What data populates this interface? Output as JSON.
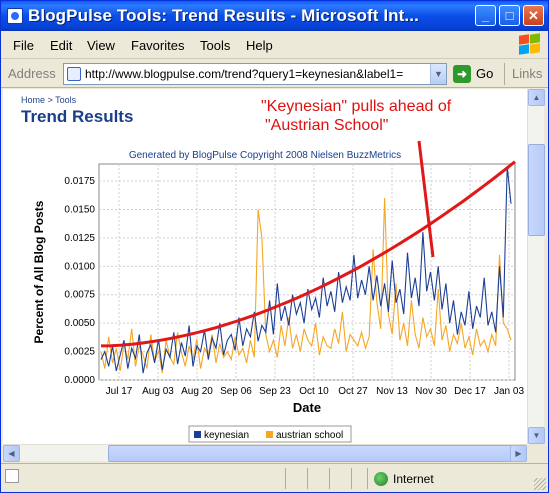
{
  "window": {
    "title": "BlogPulse Tools: Trend Results - Microsoft Int...",
    "controls": {
      "minimize": "_",
      "maximize": "□",
      "close": "✕"
    }
  },
  "menu": [
    "File",
    "Edit",
    "View",
    "Favorites",
    "Tools",
    "Help"
  ],
  "address": {
    "label": "Address",
    "url": "http://www.blogpulse.com/trend?query1=keynesian&label1=",
    "go": "Go",
    "links": "Links"
  },
  "page": {
    "breadcrumb_home": "Home",
    "breadcrumb_sep": ">",
    "breadcrumb_tools": "Tools",
    "title": "Trend Results",
    "annotation_line1": "\"Keynesian\" pulls ahead of",
    "annotation_line2": "\"Austrian School\"",
    "generated": "Generated by BlogPulse Copyright 2008 Nielsen BuzzMetrics"
  },
  "status": {
    "zone": "Internet"
  },
  "colors": {
    "keynesian": "#1c3f95",
    "austrian": "#f5a623",
    "trend": "#e01818"
  },
  "chart_data": {
    "type": "line",
    "xlabel": "Date",
    "ylabel": "Percent of All Blog Posts",
    "ylim": [
      0,
      0.019
    ],
    "yticks": [
      "0.0000",
      "0.0025",
      "0.0050",
      "0.0075",
      "0.0100",
      "0.0125",
      "0.0150",
      "0.0175"
    ],
    "xticks": [
      "Jul 17",
      "Aug 03",
      "Aug 20",
      "Sep 06",
      "Sep 23",
      "Oct 10",
      "Oct 27",
      "Nov 13",
      "Nov 30",
      "Dec 17",
      "Jan 03"
    ],
    "series": [
      {
        "name": "keynesian",
        "values": [
          0.0018,
          0.0025,
          0.0012,
          0.003,
          0.0008,
          0.0022,
          0.0035,
          0.001,
          0.0028,
          0.0019,
          0.004,
          0.0006,
          0.0024,
          0.0031,
          0.0015,
          0.0036,
          0.0009,
          0.0027,
          0.002,
          0.0042,
          0.0014,
          0.0033,
          0.0021,
          0.0048,
          0.0012,
          0.003,
          0.0025,
          0.0044,
          0.0018,
          0.0037,
          0.0028,
          0.005,
          0.0022,
          0.0035,
          0.004,
          0.0026,
          0.0055,
          0.003,
          0.0045,
          0.0038,
          0.006,
          0.0034,
          0.0048,
          0.0042,
          0.007,
          0.004,
          0.0085,
          0.0052,
          0.0065,
          0.0048,
          0.0075,
          0.0058,
          0.0068,
          0.005,
          0.008,
          0.0062,
          0.0072,
          0.0055,
          0.009,
          0.0065,
          0.0078,
          0.006,
          0.0095,
          0.0068,
          0.0082,
          0.007,
          0.011,
          0.0072,
          0.0088,
          0.0075,
          0.01,
          0.007,
          0.0092,
          0.0065,
          0.0085,
          0.006,
          0.0105,
          0.0068,
          0.008,
          0.0058,
          0.0112,
          0.0072,
          0.009,
          0.0065,
          0.013,
          0.0078,
          0.0095,
          0.007,
          0.01,
          0.0062,
          0.0085,
          0.005,
          0.007,
          0.004,
          0.006,
          0.0048,
          0.0078,
          0.0045,
          0.0065,
          0.0055,
          0.009,
          0.0048,
          0.006,
          0.0042,
          0.01,
          0.0055,
          0.0188,
          0.0155
        ]
      },
      {
        "name": "austrian school",
        "values": [
          0.0025,
          0.001,
          0.0038,
          0.0015,
          0.0028,
          0.0008,
          0.0032,
          0.0018,
          0.0045,
          0.0012,
          0.003,
          0.0022,
          0.001,
          0.004,
          0.0016,
          0.0026,
          0.0006,
          0.0035,
          0.002,
          0.0014,
          0.0042,
          0.0024,
          0.0012,
          0.003,
          0.0018,
          0.0036,
          0.001,
          0.0028,
          0.0022,
          0.004,
          0.0015,
          0.0032,
          0.002,
          0.0025,
          0.0018,
          0.0038,
          0.0022,
          0.0028,
          0.0015,
          0.0035,
          0.002,
          0.015,
          0.0125,
          0.004,
          0.0025,
          0.0035,
          0.002,
          0.0048,
          0.003,
          0.0055,
          0.0028,
          0.004,
          0.0025,
          0.0045,
          0.0035,
          0.003,
          0.005,
          0.0022,
          0.0038,
          0.003,
          0.0028,
          0.0045,
          0.0032,
          0.006,
          0.0025,
          0.004,
          0.0035,
          0.003,
          0.0042,
          0.0028,
          0.0038,
          0.0115,
          0.0068,
          0.0045,
          0.016,
          0.0058,
          0.004,
          0.0085,
          0.0035,
          0.005,
          0.003,
          0.007,
          0.004,
          0.0028,
          0.0055,
          0.0038,
          0.0045,
          0.003,
          0.008,
          0.0035,
          0.0048,
          0.0025,
          0.004,
          0.0032,
          0.005,
          0.0028,
          0.0038,
          0.0022,
          0.0045,
          0.003,
          0.0035,
          0.0025,
          0.004,
          0.003,
          0.011,
          0.005,
          0.0045,
          0.0035
        ]
      }
    ],
    "trend_overlay": {
      "from": 0.003,
      "to": 0.0192
    },
    "legend": "bottom-center",
    "grid": true
  }
}
